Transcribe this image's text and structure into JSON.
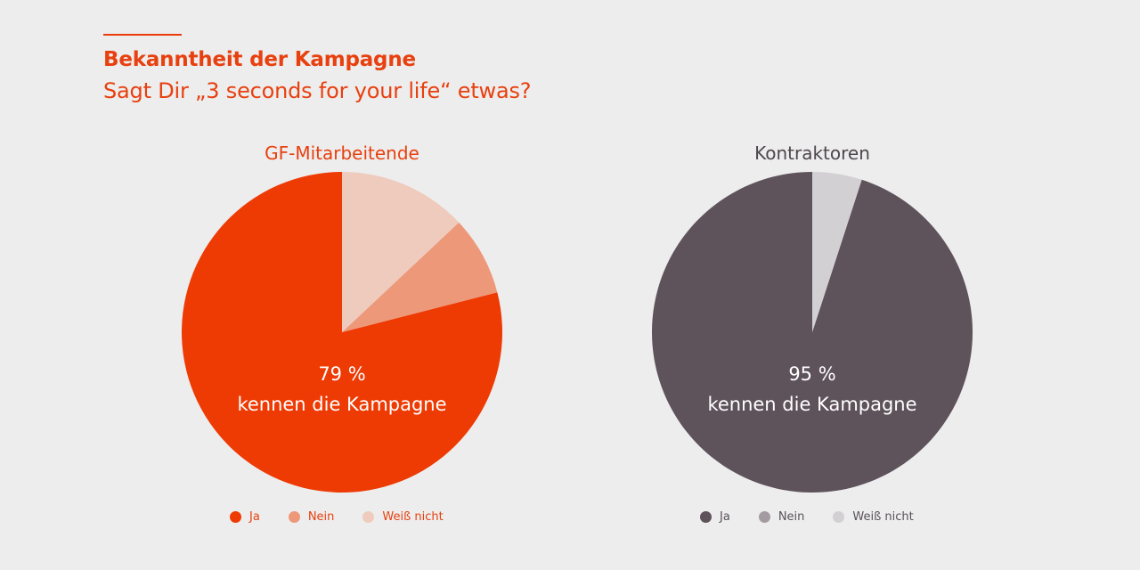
{
  "title": "Bekanntheit der Kampagne",
  "subtitle": "Sagt Dir „3 seconds for your life“ etwas?",
  "chart_data": [
    {
      "type": "pie",
      "title": "GF-Mitarbeitende",
      "categories": [
        "Ja",
        "Nein",
        "Weiß nicht"
      ],
      "values": [
        79,
        8,
        13
      ],
      "unit": "%",
      "colors": [
        "#ee3a03",
        "#ee987a",
        "#eecbbd"
      ],
      "center_value": "79 %",
      "center_text": "kennen die Kampagne",
      "legend_position": "bottom"
    },
    {
      "type": "pie",
      "title": "Kontraktoren",
      "categories": [
        "Ja",
        "Nein",
        "Weiß nicht"
      ],
      "values": [
        95,
        0,
        5
      ],
      "unit": "%",
      "colors": [
        "#5e525b",
        "#a29ca1",
        "#d3d0d3"
      ],
      "center_value": "95 %",
      "center_text": "kennen die Kampagne",
      "legend_position": "bottom"
    }
  ]
}
